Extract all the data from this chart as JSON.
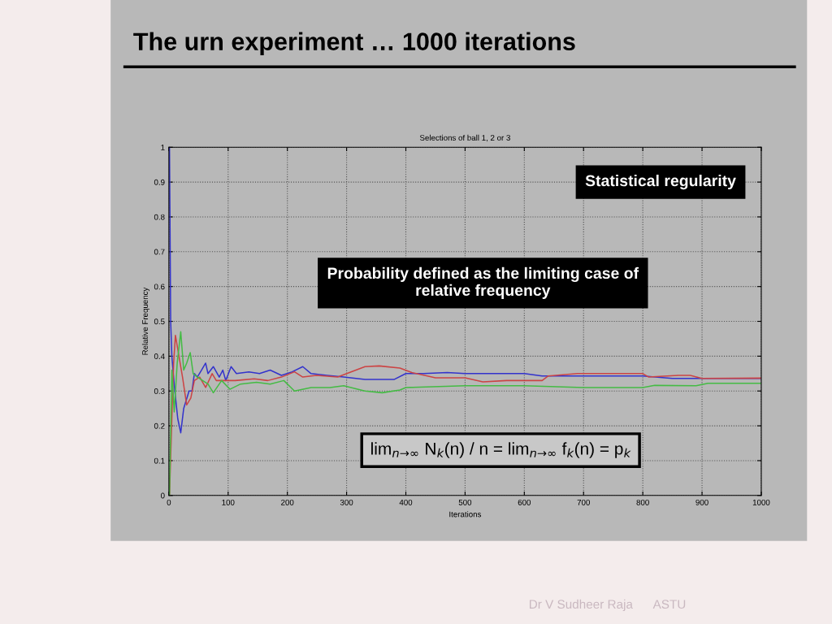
{
  "chart_data": {
    "type": "line",
    "title": "The urn experiment … 1000 iterations",
    "subtitle": "Selections of ball 1, 2 or 3",
    "xlabel": "Iterations",
    "ylabel": "Relative Frequency",
    "xlim": [
      0,
      1000
    ],
    "ylim": [
      0,
      1
    ],
    "xticks": [
      0,
      100,
      200,
      300,
      400,
      500,
      600,
      700,
      800,
      900,
      1000
    ],
    "yticks": [
      0,
      0.1,
      0.2,
      0.3,
      0.4,
      0.5,
      0.6,
      0.7,
      0.8,
      0.9,
      1
    ],
    "grid": true,
    "line_style": "solid",
    "marker": "none",
    "series": [
      {
        "color": "#3333cc",
        "x": [
          1,
          3,
          5,
          10,
          15,
          20,
          25,
          34,
          39,
          43,
          48,
          55,
          62,
          66,
          75,
          85,
          91,
          96,
          105,
          114,
          135,
          153,
          171,
          190,
          208,
          226,
          240,
          267,
          295,
          331,
          380,
          400,
          430,
          470,
          500,
          530,
          560,
          600,
          630,
          700,
          800,
          850,
          900,
          1000
        ],
        "values": [
          1,
          0.5,
          0.4,
          0.3,
          0.22,
          0.18,
          0.25,
          0.3,
          0.3,
          0.35,
          0.34,
          0.36,
          0.38,
          0.35,
          0.37,
          0.34,
          0.36,
          0.33,
          0.37,
          0.35,
          0.355,
          0.35,
          0.36,
          0.345,
          0.355,
          0.37,
          0.35,
          0.345,
          0.34,
          0.333,
          0.333,
          0.35,
          0.35,
          0.353,
          0.35,
          0.35,
          0.35,
          0.35,
          0.343,
          0.343,
          0.343,
          0.336,
          0.336,
          0.336
        ]
      },
      {
        "color": "#cc4444",
        "x": [
          1,
          5,
          8,
          11,
          16,
          23,
          30,
          37,
          43,
          52,
          62,
          73,
          80,
          112,
          144,
          167,
          190,
          212,
          226,
          249,
          285,
          331,
          355,
          390,
          410,
          450,
          500,
          530,
          570,
          630,
          640,
          690,
          800,
          810,
          860,
          880,
          900,
          1000
        ],
        "values": [
          0,
          0.22,
          0.38,
          0.46,
          0.41,
          0.34,
          0.26,
          0.28,
          0.33,
          0.34,
          0.31,
          0.35,
          0.33,
          0.33,
          0.335,
          0.33,
          0.34,
          0.355,
          0.34,
          0.345,
          0.34,
          0.37,
          0.372,
          0.366,
          0.353,
          0.338,
          0.338,
          0.326,
          0.33,
          0.33,
          0.343,
          0.35,
          0.35,
          0.34,
          0.345,
          0.345,
          0.336,
          0.337
        ]
      },
      {
        "color": "#44bb44",
        "x": [
          1,
          5,
          9,
          14,
          20,
          25,
          30,
          36,
          41,
          48,
          57,
          66,
          75,
          89,
          103,
          121,
          148,
          171,
          194,
          212,
          240,
          272,
          295,
          331,
          360,
          390,
          400,
          500,
          600,
          700,
          800,
          820,
          890,
          910,
          1000
        ],
        "values": [
          0,
          0.36,
          0.24,
          0.38,
          0.47,
          0.36,
          0.38,
          0.41,
          0.35,
          0.34,
          0.33,
          0.32,
          0.295,
          0.33,
          0.305,
          0.32,
          0.325,
          0.32,
          0.33,
          0.3,
          0.31,
          0.31,
          0.315,
          0.3,
          0.295,
          0.303,
          0.31,
          0.315,
          0.315,
          0.31,
          0.31,
          0.316,
          0.315,
          0.322,
          0.322
        ]
      }
    ],
    "annotations": [
      "Statistical regularity",
      "Probability defined as the limiting case of\nrelative frequency",
      "lim$_{n→∞}$ N$_{k}$(n) / n = lim$_{n→∞}$ f$_{k}$(n) = p$_{k}$",
      "Dr V Sudheer Raja      ASTU"
    ]
  }
}
